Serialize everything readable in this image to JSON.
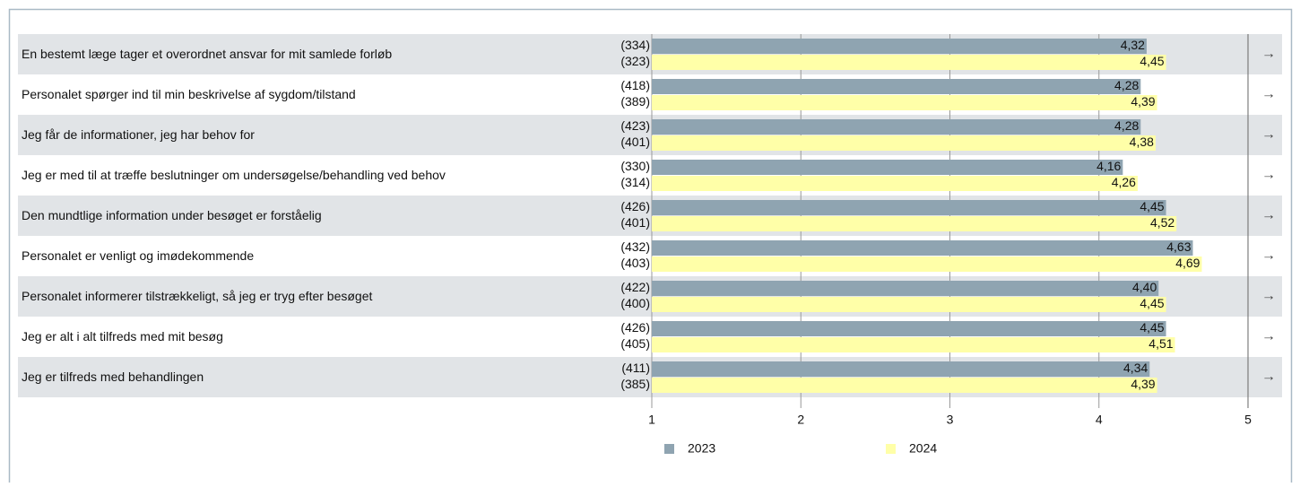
{
  "chart_data": {
    "type": "bar",
    "orientation": "horizontal",
    "categories": [
      "En bestemt læge tager et overordnet ansvar for mit samlede forløb",
      "Personalet spørger ind til min beskrivelse af sygdom/tilstand",
      "Jeg får de informationer, jeg har behov for",
      "Jeg er med til at træffe beslutninger om undersøgelse/behandling ved behov",
      "Den mundtlige information under besøget er forståelig",
      "Personalet er venligt og imødekommende",
      "Personalet informerer tilstrækkeligt, så jeg er tryg efter besøget",
      "Jeg er alt i alt tilfreds med mit besøg",
      "Jeg er tilfreds med behandlingen"
    ],
    "series": [
      {
        "name": "2023",
        "color": "#8fa4b1",
        "values": [
          4.32,
          4.28,
          4.28,
          4.16,
          4.45,
          4.63,
          4.4,
          4.45,
          4.34
        ],
        "value_labels": [
          "4,32",
          "4,28",
          "4,28",
          "4,16",
          "4,45",
          "4,63",
          "4,40",
          "4,45",
          "4,34"
        ],
        "counts": [
          "(334)",
          "(418)",
          "(423)",
          "(330)",
          "(426)",
          "(432)",
          "(422)",
          "(426)",
          "(411)"
        ]
      },
      {
        "name": "2024",
        "color": "#ffffa8",
        "values": [
          4.45,
          4.39,
          4.38,
          4.26,
          4.52,
          4.69,
          4.45,
          4.51,
          4.39
        ],
        "value_labels": [
          "4,45",
          "4,39",
          "4,38",
          "4,26",
          "4,52",
          "4,69",
          "4,45",
          "4,51",
          "4,39"
        ],
        "counts": [
          "(323)",
          "(389)",
          "(401)",
          "(314)",
          "(401)",
          "(403)",
          "(400)",
          "(405)",
          "(385)"
        ]
      }
    ],
    "trend": [
      "→",
      "→",
      "→",
      "→",
      "→",
      "→",
      "→",
      "→",
      "→"
    ],
    "xlim": [
      1,
      5
    ],
    "xticks": [
      1,
      2,
      3,
      4,
      5
    ],
    "grid": true,
    "legend": "bottom"
  }
}
